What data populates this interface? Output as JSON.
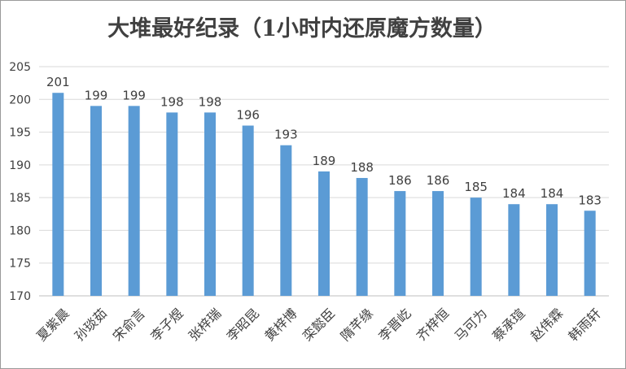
{
  "chart_data": {
    "type": "bar",
    "title": "大堆最好纪录（1小时内还原魔方数量）",
    "xlabel": "",
    "ylabel": "",
    "categories": [
      "夏紫晨",
      "孙琰茹",
      "宋俞言",
      "李子煜",
      "张梓瑞",
      "李昭昆",
      "黄梓博",
      "栾懿臣",
      "隋芊缘",
      "李晋屹",
      "齐梓恒",
      "马可为",
      "蔡承瑄",
      "赵伟霖",
      "韩雨轩"
    ],
    "values": [
      201,
      199,
      199,
      198,
      198,
      196,
      193,
      189,
      188,
      186,
      186,
      185,
      184,
      184,
      183
    ],
    "ylim": [
      170,
      205
    ],
    "yticks": [
      "170",
      "175",
      "180",
      "185",
      "190",
      "195",
      "200",
      "205"
    ],
    "grid": true,
    "legend": "none",
    "colors": {
      "bar": "#5b9bd5",
      "grid": "#d9d9d9",
      "text": "#404040",
      "title": "#404040",
      "frame": "#9a9a9a"
    }
  }
}
